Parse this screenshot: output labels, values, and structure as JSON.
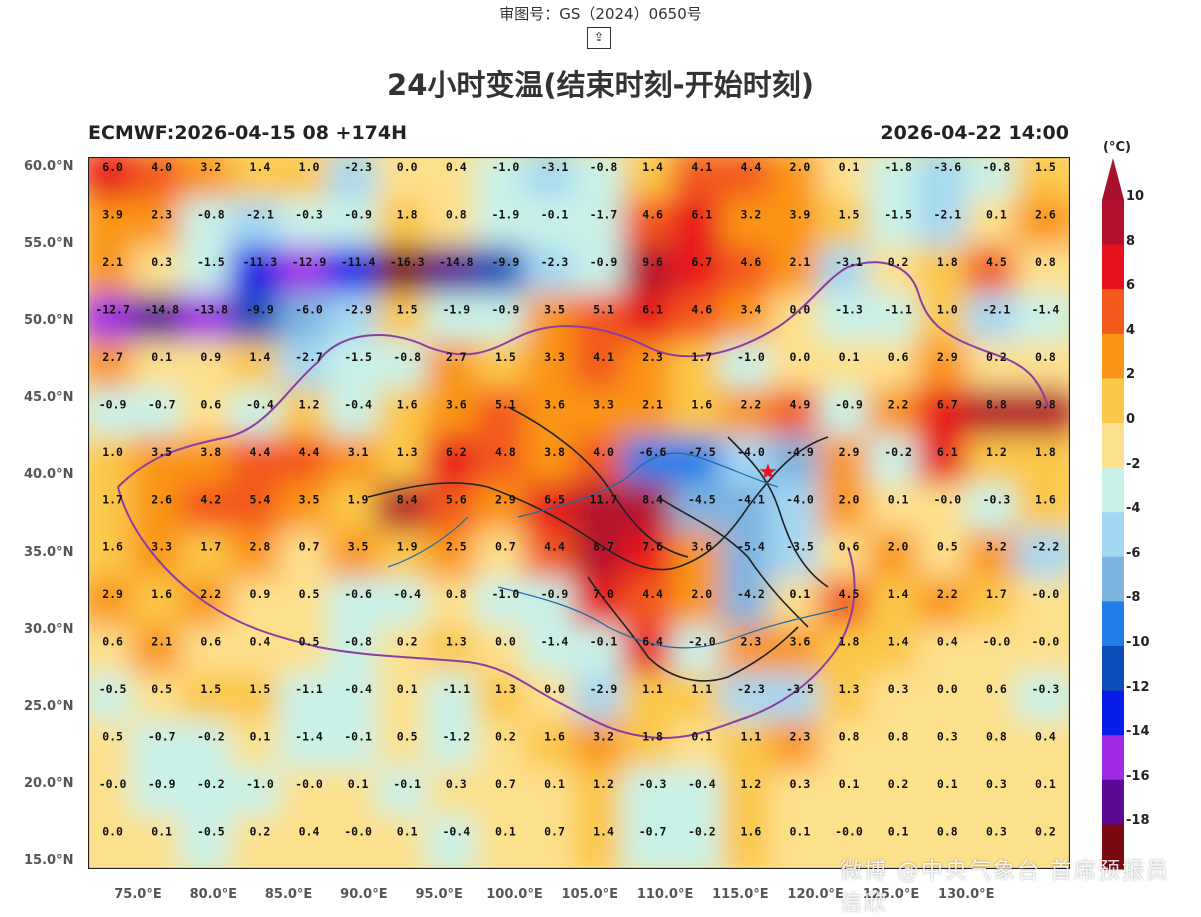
{
  "header": {
    "approval_number": "审图号：GS（2024）0650号",
    "share_icon": "⇪",
    "title": "24小时变温(结束时刻-开始时刻)"
  },
  "map": {
    "model_run": "ECMWF:2026-04-15 08 +174H",
    "valid_time": "2026-04-22 14:00",
    "lat_labels": [
      "60.0°N",
      "55.0°N",
      "50.0°N",
      "45.0°N",
      "40.0°N",
      "35.0°N",
      "30.0°N",
      "25.0°N",
      "20.0°N",
      "15.0°N"
    ],
    "lon_labels": [
      "75.0°E",
      "80.0°E",
      "85.0°E",
      "90.0°E",
      "95.0°E",
      "100.0°E",
      "105.0°E",
      "110.0°E",
      "115.0°E",
      "120.0°E",
      "125.0°E",
      "130.0°E"
    ],
    "station_values": [
      [
        "6.0",
        "4.0",
        "3.2",
        "1.4",
        "1.0",
        "-2.3",
        "0.0",
        "0.4",
        "-1.0",
        "-3.1",
        "-0.8",
        "1.4",
        "4.1",
        "4.4",
        "2.0",
        "0.1",
        "-1.8",
        "-3.6",
        "-0.8",
        "1.5"
      ],
      [
        "3.9",
        "2.3",
        "-0.8",
        "-2.1",
        "-0.3",
        "-0.9",
        "1.8",
        "0.8",
        "-1.9",
        "-0.1",
        "-1.7",
        "4.6",
        "6.1",
        "3.2",
        "3.9",
        "1.5",
        "-1.5",
        "-2.1",
        "0.1",
        "2.6"
      ],
      [
        "2.1",
        "0.3",
        "-1.5",
        "-11.3",
        "-12.9",
        "-11.4",
        "-16.3",
        "-14.8",
        "-9.9",
        "-2.3",
        "-0.9",
        "9.6",
        "6.7",
        "4.6",
        "2.1",
        "-3.1",
        "0.2",
        "1.8",
        "4.5",
        "0.8"
      ],
      [
        "-12.7",
        "-14.8",
        "-13.8",
        "-9.9",
        "-6.0",
        "-2.9",
        "1.5",
        "-1.9",
        "-0.9",
        "3.5",
        "5.1",
        "6.1",
        "4.6",
        "3.4",
        "0.0",
        "-1.3",
        "-1.1",
        "1.0",
        "-2.1",
        "-1.4"
      ],
      [
        "2.7",
        "0.1",
        "0.9",
        "1.4",
        "-2.7",
        "-1.5",
        "-0.8",
        "2.7",
        "1.5",
        "3.3",
        "4.1",
        "2.3",
        "1.7",
        "-1.0",
        "0.0",
        "0.1",
        "0.6",
        "2.9",
        "0.2",
        "0.8"
      ],
      [
        "-0.9",
        "-0.7",
        "0.6",
        "-0.4",
        "1.2",
        "-0.4",
        "1.6",
        "3.6",
        "5.1",
        "3.6",
        "3.3",
        "2.1",
        "1.6",
        "2.2",
        "4.9",
        "-0.9",
        "2.2",
        "6.7",
        "8.8",
        "9.8"
      ],
      [
        "1.0",
        "3.5",
        "3.8",
        "4.4",
        "4.4",
        "3.1",
        "1.3",
        "6.2",
        "4.8",
        "3.8",
        "4.0",
        "-6.6",
        "-7.5",
        "-4.0",
        "-4.9",
        "2.9",
        "-0.2",
        "6.1",
        "1.2",
        "1.8"
      ],
      [
        "1.7",
        "2.6",
        "4.2",
        "5.4",
        "3.5",
        "1.9",
        "8.4",
        "5.6",
        "2.9",
        "6.5",
        "11.7",
        "8.4",
        "-4.5",
        "-4.1",
        "-4.0",
        "2.0",
        "0.1",
        "-0.0",
        "-0.3",
        "1.6"
      ],
      [
        "1.6",
        "3.3",
        "1.7",
        "2.8",
        "0.7",
        "3.5",
        "1.9",
        "2.5",
        "0.7",
        "4.4",
        "8.7",
        "7.6",
        "3.6",
        "-5.4",
        "-3.5",
        "0.6",
        "2.0",
        "0.5",
        "3.2",
        "-2.2"
      ],
      [
        "2.9",
        "1.6",
        "2.2",
        "0.9",
        "0.5",
        "-0.6",
        "-0.4",
        "0.8",
        "-1.0",
        "-0.9",
        "7.0",
        "4.4",
        "2.0",
        "-4.2",
        "0.1",
        "4.5",
        "1.4",
        "2.2",
        "1.7",
        "-0.0"
      ],
      [
        "0.6",
        "2.1",
        "0.6",
        "0.4",
        "0.5",
        "-0.8",
        "0.2",
        "1.3",
        "0.0",
        "-1.4",
        "-0.1",
        "6.4",
        "-2.0",
        "2.3",
        "3.6",
        "1.8",
        "1.4",
        "0.4",
        "-0.0",
        "-0.0"
      ],
      [
        "-0.5",
        "0.5",
        "1.5",
        "1.5",
        "-1.1",
        "-0.4",
        "0.1",
        "-1.1",
        "1.3",
        "0.0",
        "-2.9",
        "1.1",
        "1.1",
        "-2.3",
        "-3.5",
        "1.3",
        "0.3",
        "0.0",
        "0.6",
        "-0.3"
      ],
      [
        "0.5",
        "-0.7",
        "-0.2",
        "0.1",
        "-1.4",
        "-0.1",
        "0.5",
        "-1.2",
        "0.2",
        "1.6",
        "3.2",
        "1.8",
        "0.1",
        "1.1",
        "2.3",
        "0.8",
        "0.8",
        "0.3",
        "0.8",
        "0.4"
      ],
      [
        "-0.0",
        "-0.9",
        "-0.2",
        "-1.0",
        "-0.0",
        "0.1",
        "-0.1",
        "0.3",
        "0.7",
        "0.1",
        "1.2",
        "-0.3",
        "-0.4",
        "1.2",
        "0.3",
        "0.1",
        "0.2",
        "0.1",
        "0.3",
        "0.1"
      ],
      [
        "0.0",
        "0.1",
        "-0.5",
        "0.2",
        "0.4",
        "-0.0",
        "0.1",
        "-0.4",
        "0.1",
        "0.7",
        "1.4",
        "-0.7",
        "-0.2",
        "1.6",
        "0.1",
        "-0.0",
        "0.1",
        "0.8",
        "0.3",
        "0.2"
      ]
    ],
    "capital_marker": "star-icon"
  },
  "colorbar": {
    "unit": "(°C)",
    "labels": [
      "10",
      "8",
      "6",
      "4",
      "2",
      "0",
      "-2",
      "-4",
      "-6",
      "-8",
      "-10",
      "-12",
      "-14",
      "-16",
      "-18"
    ],
    "colors": [
      "#b3122e",
      "#e8121e",
      "#f3591b",
      "#fa9517",
      "#fbc84a",
      "#fde08c",
      "#c8f2e8",
      "#a4d8f2",
      "#7eb4e0",
      "#1f7ee8",
      "#0d4fb8",
      "#0a1de8",
      "#a02ae6",
      "#5c0a96",
      "#7a0a10"
    ],
    "top_color": "#a8102e",
    "bottom_color": "#3a0606"
  },
  "watermark": "微博 @中央气象台 首席预报员 信欣"
}
